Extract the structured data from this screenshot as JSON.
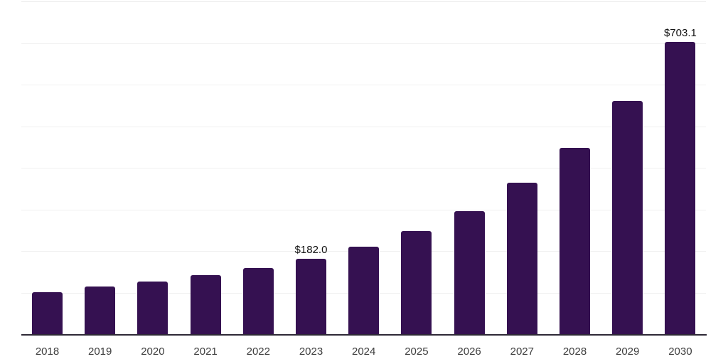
{
  "chart_data": {
    "type": "bar",
    "title": "",
    "xlabel": "",
    "ylabel": "",
    "categories": [
      "2018",
      "2019",
      "2020",
      "2021",
      "2022",
      "2023",
      "2024",
      "2025",
      "2026",
      "2027",
      "2028",
      "2029",
      "2030"
    ],
    "values": [
      101,
      114,
      126,
      142,
      159,
      182.0,
      211,
      248,
      296,
      364,
      448,
      560,
      703.1
    ],
    "data_labels": {
      "2023": "$182.0",
      "2030": "$703.1"
    },
    "ylim": [
      0,
      800
    ],
    "grid": {
      "show": true,
      "interval": 100
    },
    "legend_position": "none",
    "colors": {
      "bar": "#351151",
      "axis_line": "#2e2936",
      "gridline": "#f0f0f0",
      "top_gridline": "#eaeaea",
      "value_label": "#111111",
      "tick_label": "#3d3d3d",
      "background": "#ffffff"
    }
  }
}
